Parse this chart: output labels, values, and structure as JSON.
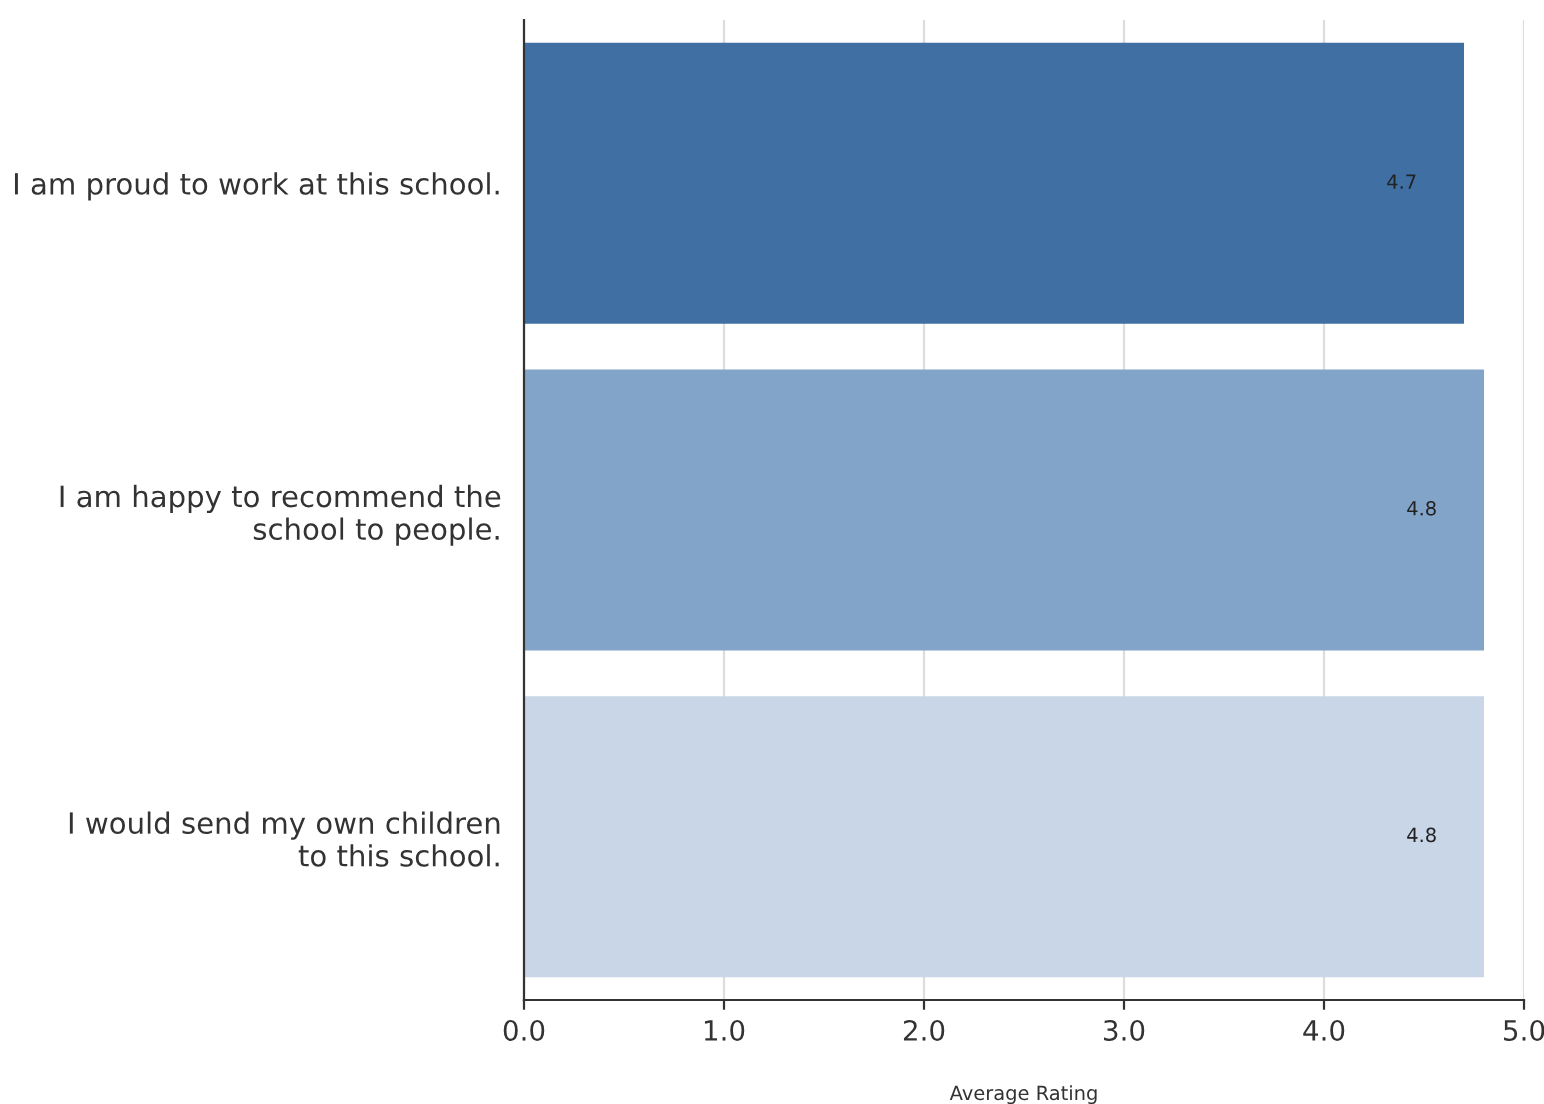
{
  "chart_data": {
    "type": "bar",
    "orientation": "horizontal",
    "xlabel": "Average Rating",
    "categories": [
      "I am proud to work at this school.",
      "I am happy to recommend the\nschool to people.",
      "I would send my own children\nto this school."
    ],
    "values": [
      4.7,
      4.8,
      4.8
    ],
    "colors": [
      "#406fa3",
      "#83a4c9",
      "#c8d6e7"
    ],
    "data_labels": true,
    "xlim": [
      0,
      5
    ],
    "xticks": [
      {
        "value": 0,
        "label": "0.0"
      },
      {
        "value": 1,
        "label": "1.0"
      },
      {
        "value": 2,
        "label": "2.0"
      },
      {
        "value": 3,
        "label": "3.0"
      },
      {
        "value": 4,
        "label": "4.0"
      },
      {
        "value": 5,
        "label": "5.0"
      }
    ],
    "grid": "x",
    "legend": false
  }
}
